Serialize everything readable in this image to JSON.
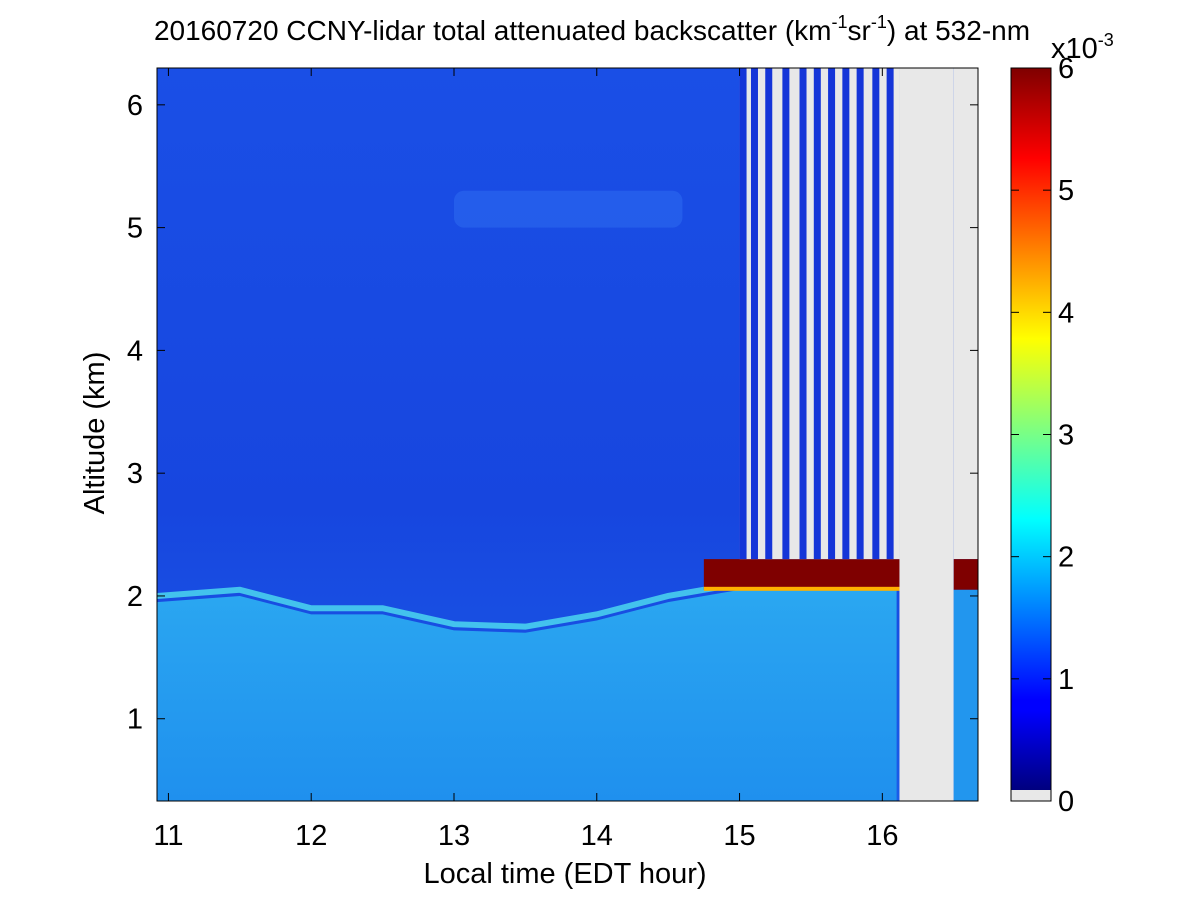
{
  "chart_data": {
    "type": "heatmap",
    "title": {
      "pre": "20160720 CCNY-lidar total attenuated backscatter (km",
      "exp1": "-1",
      "mid": "sr",
      "exp2": "-1",
      "post": ") at 532-nm"
    },
    "xlabel": "Local time (EDT hour)",
    "ylabel": "Altitude (km)",
    "xlim": [
      10.92,
      16.67
    ],
    "ylim": [
      0.33,
      6.3
    ],
    "x_ticks": [
      11,
      12,
      13,
      14,
      15,
      16
    ],
    "y_ticks": [
      1,
      2,
      3,
      4,
      5,
      6
    ],
    "colormap": "jet",
    "colorbar": {
      "ticks": [
        0,
        1,
        2,
        3,
        4,
        5,
        6
      ],
      "multiplier_label": "x10",
      "multiplier_exp": "-3",
      "no_data_color": "#e8e8e8",
      "range": [
        0,
        6
      ]
    },
    "boundary_layer_top_km": [
      {
        "time": 10.92,
        "alt": 1.95
      },
      {
        "time": 11.5,
        "alt": 2.0
      },
      {
        "time": 12.0,
        "alt": 1.85
      },
      {
        "time": 12.5,
        "alt": 1.85
      },
      {
        "time": 13.0,
        "alt": 1.72
      },
      {
        "time": 13.5,
        "alt": 1.7
      },
      {
        "time": 14.0,
        "alt": 1.8
      },
      {
        "time": 14.5,
        "alt": 1.95
      },
      {
        "time": 15.0,
        "alt": 2.05
      },
      {
        "time": 15.5,
        "alt": 2.05
      },
      {
        "time": 16.1,
        "alt": 2.05
      }
    ],
    "cloud_layer": {
      "start_time": 14.75,
      "base_km": 2.05,
      "top_km": 2.3
    },
    "elevated_aerosol_layer": {
      "start_time": 13.0,
      "end_time": 14.6,
      "base_km": 5.0,
      "top_km": 5.3
    },
    "no_data_intervals": [
      {
        "start": 16.12,
        "end": 16.5
      }
    ]
  }
}
